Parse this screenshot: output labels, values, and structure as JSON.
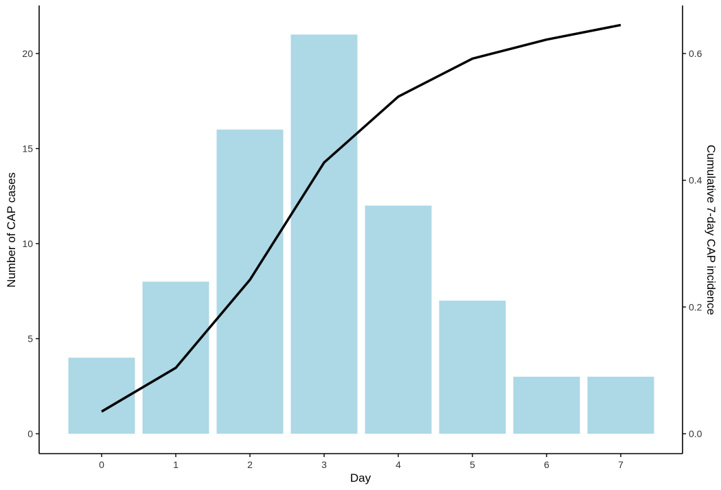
{
  "chart_data": {
    "type": "bar",
    "xlabel": "Day",
    "ylabel": "Number of CAP cases",
    "y2label": "Cumulative 7-day CAP incidence",
    "categories": [
      0,
      1,
      2,
      3,
      4,
      5,
      6,
      7
    ],
    "x_ticks": [
      "0",
      "1",
      "2",
      "3",
      "4",
      "5",
      "6",
      "7"
    ],
    "y_ticks": [
      "0",
      "5",
      "10",
      "15",
      "20"
    ],
    "y2_ticks": [
      "0.0",
      "0.2",
      "0.4",
      "0.6"
    ],
    "ylim": [
      0,
      22
    ],
    "y2lim": [
      0,
      0.66
    ],
    "grid": false,
    "series": [
      {
        "type": "bar",
        "axis": "left",
        "values": [
          4,
          8,
          16,
          21,
          12,
          7,
          3,
          3
        ],
        "color": "#add8e6"
      },
      {
        "type": "line",
        "axis": "right",
        "values": [
          0.035,
          0.104,
          0.243,
          0.428,
          0.532,
          0.592,
          0.622,
          0.645
        ],
        "color": "#000000"
      }
    ]
  }
}
